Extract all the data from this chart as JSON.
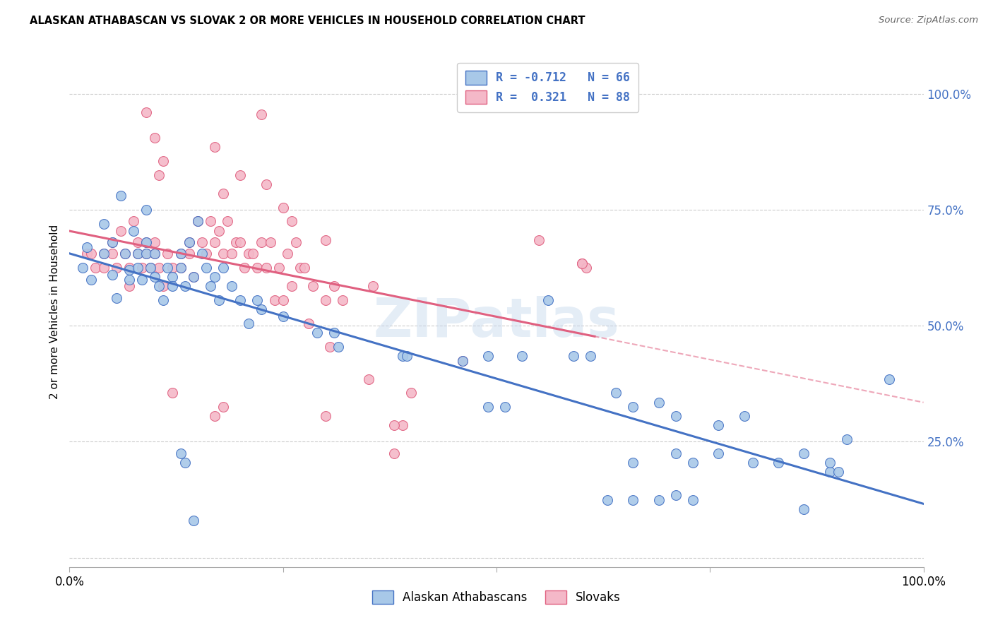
{
  "title": "ALASKAN ATHABASCAN VS SLOVAK 2 OR MORE VEHICLES IN HOUSEHOLD CORRELATION CHART",
  "source": "Source: ZipAtlas.com",
  "ylabel": "2 or more Vehicles in Household",
  "xlim": [
    0.0,
    1.0
  ],
  "ylim": [
    -0.02,
    1.08
  ],
  "watermark": "ZIPatlas",
  "blue_color": "#a8c8e8",
  "pink_color": "#f4b8c8",
  "blue_edge_color": "#4472c4",
  "pink_edge_color": "#e06080",
  "blue_line_color": "#4472c4",
  "pink_line_color": "#e06080",
  "blue_scatter": [
    [
      0.015,
      0.625
    ],
    [
      0.02,
      0.67
    ],
    [
      0.025,
      0.6
    ],
    [
      0.04,
      0.72
    ],
    [
      0.04,
      0.655
    ],
    [
      0.05,
      0.68
    ],
    [
      0.05,
      0.61
    ],
    [
      0.055,
      0.56
    ],
    [
      0.06,
      0.78
    ],
    [
      0.065,
      0.655
    ],
    [
      0.07,
      0.62
    ],
    [
      0.07,
      0.6
    ],
    [
      0.075,
      0.705
    ],
    [
      0.08,
      0.655
    ],
    [
      0.08,
      0.625
    ],
    [
      0.085,
      0.6
    ],
    [
      0.09,
      0.75
    ],
    [
      0.09,
      0.68
    ],
    [
      0.09,
      0.655
    ],
    [
      0.095,
      0.625
    ],
    [
      0.1,
      0.655
    ],
    [
      0.1,
      0.605
    ],
    [
      0.105,
      0.585
    ],
    [
      0.11,
      0.555
    ],
    [
      0.115,
      0.625
    ],
    [
      0.12,
      0.605
    ],
    [
      0.12,
      0.585
    ],
    [
      0.13,
      0.655
    ],
    [
      0.13,
      0.625
    ],
    [
      0.135,
      0.585
    ],
    [
      0.14,
      0.68
    ],
    [
      0.145,
      0.605
    ],
    [
      0.15,
      0.725
    ],
    [
      0.155,
      0.655
    ],
    [
      0.16,
      0.625
    ],
    [
      0.165,
      0.585
    ],
    [
      0.17,
      0.605
    ],
    [
      0.175,
      0.555
    ],
    [
      0.18,
      0.625
    ],
    [
      0.19,
      0.585
    ],
    [
      0.2,
      0.555
    ],
    [
      0.21,
      0.505
    ],
    [
      0.22,
      0.555
    ],
    [
      0.225,
      0.535
    ],
    [
      0.25,
      0.52
    ],
    [
      0.29,
      0.485
    ],
    [
      0.31,
      0.485
    ],
    [
      0.315,
      0.455
    ],
    [
      0.13,
      0.225
    ],
    [
      0.135,
      0.205
    ],
    [
      0.145,
      0.08
    ],
    [
      0.39,
      0.435
    ],
    [
      0.395,
      0.435
    ],
    [
      0.46,
      0.425
    ],
    [
      0.49,
      0.435
    ],
    [
      0.53,
      0.435
    ],
    [
      0.56,
      0.555
    ],
    [
      0.59,
      0.435
    ],
    [
      0.61,
      0.435
    ],
    [
      0.64,
      0.355
    ],
    [
      0.66,
      0.325
    ],
    [
      0.69,
      0.335
    ],
    [
      0.71,
      0.305
    ],
    [
      0.66,
      0.205
    ],
    [
      0.71,
      0.225
    ],
    [
      0.73,
      0.205
    ],
    [
      0.76,
      0.285
    ],
    [
      0.76,
      0.225
    ],
    [
      0.79,
      0.305
    ],
    [
      0.8,
      0.205
    ],
    [
      0.63,
      0.125
    ],
    [
      0.69,
      0.125
    ],
    [
      0.73,
      0.125
    ],
    [
      0.49,
      0.325
    ],
    [
      0.51,
      0.325
    ],
    [
      0.66,
      0.125
    ],
    [
      0.71,
      0.135
    ],
    [
      0.86,
      0.105
    ],
    [
      0.89,
      0.185
    ],
    [
      0.83,
      0.205
    ],
    [
      0.86,
      0.225
    ],
    [
      0.91,
      0.255
    ],
    [
      0.96,
      0.385
    ],
    [
      0.89,
      0.205
    ],
    [
      0.9,
      0.185
    ]
  ],
  "pink_scatter": [
    [
      0.02,
      0.655
    ],
    [
      0.025,
      0.655
    ],
    [
      0.03,
      0.625
    ],
    [
      0.04,
      0.655
    ],
    [
      0.04,
      0.625
    ],
    [
      0.05,
      0.68
    ],
    [
      0.05,
      0.655
    ],
    [
      0.055,
      0.625
    ],
    [
      0.06,
      0.705
    ],
    [
      0.065,
      0.655
    ],
    [
      0.07,
      0.625
    ],
    [
      0.07,
      0.585
    ],
    [
      0.075,
      0.725
    ],
    [
      0.08,
      0.68
    ],
    [
      0.08,
      0.655
    ],
    [
      0.085,
      0.625
    ],
    [
      0.09,
      0.68
    ],
    [
      0.09,
      0.655
    ],
    [
      0.095,
      0.625
    ],
    [
      0.1,
      0.68
    ],
    [
      0.1,
      0.655
    ],
    [
      0.105,
      0.625
    ],
    [
      0.11,
      0.585
    ],
    [
      0.115,
      0.655
    ],
    [
      0.12,
      0.625
    ],
    [
      0.13,
      0.655
    ],
    [
      0.13,
      0.625
    ],
    [
      0.14,
      0.68
    ],
    [
      0.14,
      0.655
    ],
    [
      0.145,
      0.605
    ],
    [
      0.15,
      0.725
    ],
    [
      0.155,
      0.68
    ],
    [
      0.16,
      0.655
    ],
    [
      0.165,
      0.725
    ],
    [
      0.17,
      0.68
    ],
    [
      0.175,
      0.705
    ],
    [
      0.18,
      0.655
    ],
    [
      0.185,
      0.725
    ],
    [
      0.19,
      0.655
    ],
    [
      0.195,
      0.68
    ],
    [
      0.2,
      0.68
    ],
    [
      0.205,
      0.625
    ],
    [
      0.21,
      0.655
    ],
    [
      0.215,
      0.655
    ],
    [
      0.22,
      0.625
    ],
    [
      0.225,
      0.68
    ],
    [
      0.23,
      0.625
    ],
    [
      0.235,
      0.68
    ],
    [
      0.24,
      0.555
    ],
    [
      0.245,
      0.625
    ],
    [
      0.25,
      0.555
    ],
    [
      0.255,
      0.655
    ],
    [
      0.26,
      0.585
    ],
    [
      0.265,
      0.68
    ],
    [
      0.27,
      0.625
    ],
    [
      0.275,
      0.625
    ],
    [
      0.28,
      0.505
    ],
    [
      0.285,
      0.585
    ],
    [
      0.3,
      0.555
    ],
    [
      0.305,
      0.455
    ],
    [
      0.31,
      0.585
    ],
    [
      0.32,
      0.555
    ],
    [
      0.355,
      0.585
    ],
    [
      0.09,
      0.96
    ],
    [
      0.1,
      0.905
    ],
    [
      0.11,
      0.855
    ],
    [
      0.105,
      0.825
    ],
    [
      0.17,
      0.885
    ],
    [
      0.18,
      0.785
    ],
    [
      0.2,
      0.825
    ],
    [
      0.225,
      0.955
    ],
    [
      0.23,
      0.805
    ],
    [
      0.25,
      0.755
    ],
    [
      0.26,
      0.725
    ],
    [
      0.3,
      0.685
    ],
    [
      0.38,
      0.225
    ],
    [
      0.39,
      0.285
    ],
    [
      0.4,
      0.355
    ],
    [
      0.46,
      0.425
    ],
    [
      0.35,
      0.385
    ],
    [
      0.55,
      0.685
    ],
    [
      0.6,
      0.635
    ],
    [
      0.605,
      0.625
    ],
    [
      0.6,
      0.635
    ],
    [
      0.12,
      0.355
    ],
    [
      0.17,
      0.305
    ],
    [
      0.18,
      0.325
    ],
    [
      0.3,
      0.305
    ],
    [
      0.38,
      0.285
    ]
  ]
}
